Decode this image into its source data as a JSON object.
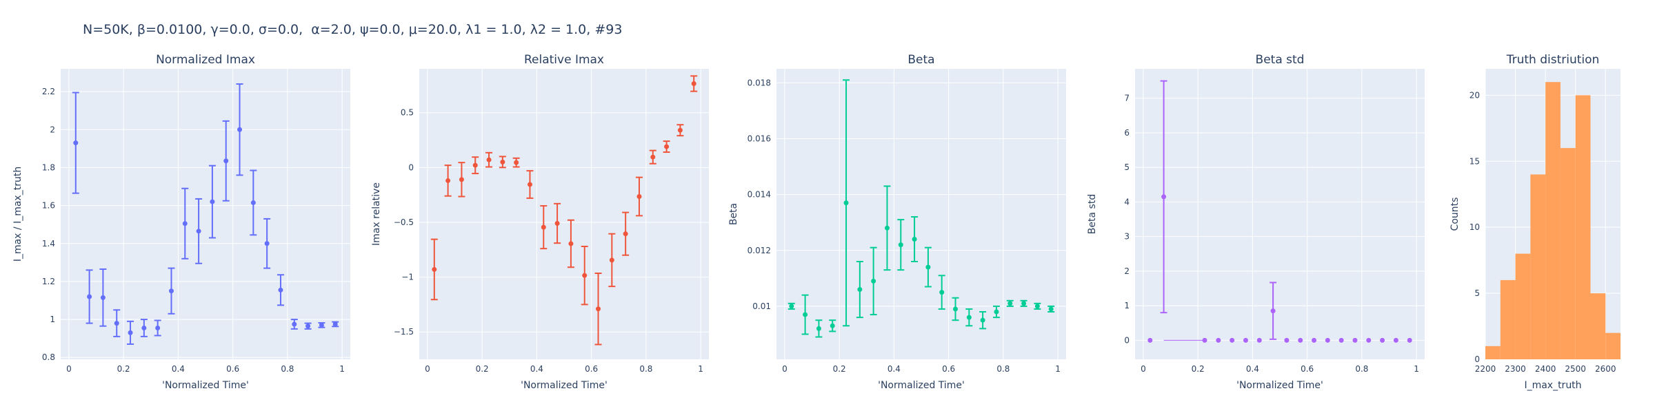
{
  "figure": {
    "title": "N=50K, β=0.0100, γ=0.0, σ=0.0,  α=2.0, ψ=0.0, μ=20.0, λ1 = 1.0, λ2 = 1.0, #93"
  },
  "colors": {
    "plot_bg": "#e5ecf6",
    "grid": "#ffffff",
    "text": "#2a3f5f",
    "blue": "#636efa",
    "red": "#ef553b",
    "green": "#00cc96",
    "purple": "#ab63fa",
    "orange": "#ffa15a"
  },
  "chart_data": [
    {
      "type": "scatter",
      "title": "Normalized Imax",
      "xlabel": "'Normalized Time'",
      "ylabel": "I_max / I_max_truth",
      "color": "blue",
      "xlim": [
        -0.03,
        1.03
      ],
      "ylim": [
        0.79,
        2.32
      ],
      "xticks": [
        0,
        0.2,
        0.4,
        0.6,
        0.8,
        1
      ],
      "xticklabels": [
        "0",
        "0.2",
        "0.4",
        "0.6",
        "0.8",
        "1"
      ],
      "yticks": [
        0.8,
        1,
        1.2,
        1.4,
        1.6,
        1.8,
        2,
        2.2
      ],
      "yticklabels": [
        "0.8",
        "1",
        "1.2",
        "1.4",
        "1.6",
        "1.8",
        "2",
        "2.2"
      ],
      "x": [
        0.025,
        0.075,
        0.125,
        0.175,
        0.225,
        0.275,
        0.325,
        0.375,
        0.425,
        0.475,
        0.525,
        0.575,
        0.625,
        0.675,
        0.725,
        0.775,
        0.825,
        0.875,
        0.925,
        0.975
      ],
      "y": [
        1.93,
        1.12,
        1.115,
        0.98,
        0.93,
        0.955,
        0.955,
        1.15,
        1.505,
        1.465,
        1.62,
        1.835,
        2.0,
        1.615,
        1.4,
        1.155,
        0.975,
        0.965,
        0.97,
        0.975
      ],
      "err": [
        0.265,
        0.14,
        0.15,
        0.07,
        0.06,
        0.045,
        0.04,
        0.12,
        0.185,
        0.17,
        0.19,
        0.21,
        0.24,
        0.17,
        0.13,
        0.08,
        0.025,
        0.015,
        0.012,
        0.012
      ]
    },
    {
      "type": "scatter",
      "title": "Relative Imax",
      "xlabel": "'Normalized Time'",
      "ylabel": "Imax relative",
      "color": "red",
      "xlim": [
        -0.03,
        1.03
      ],
      "ylim": [
        -1.75,
        0.9
      ],
      "xticks": [
        0,
        0.2,
        0.4,
        0.6,
        0.8,
        1
      ],
      "xticklabels": [
        "0",
        "0.2",
        "0.4",
        "0.6",
        "0.8",
        "1"
      ],
      "yticks": [
        -1.5,
        -1,
        -0.5,
        0,
        0.5
      ],
      "yticklabels": [
        "−1.5",
        "−1",
        "−0.5",
        "0",
        "0.5"
      ],
      "x": [
        0.025,
        0.075,
        0.125,
        0.175,
        0.225,
        0.275,
        0.325,
        0.375,
        0.425,
        0.475,
        0.525,
        0.575,
        0.625,
        0.675,
        0.725,
        0.775,
        0.825,
        0.875,
        0.925,
        0.975
      ],
      "y": [
        -0.93,
        -0.12,
        -0.11,
        0.02,
        0.07,
        0.05,
        0.045,
        -0.155,
        -0.545,
        -0.51,
        -0.695,
        -0.985,
        -1.29,
        -0.845,
        -0.605,
        -0.265,
        0.095,
        0.19,
        0.34,
        0.765
      ],
      "err": [
        0.275,
        0.14,
        0.155,
        0.075,
        0.065,
        0.05,
        0.04,
        0.125,
        0.195,
        0.18,
        0.215,
        0.265,
        0.325,
        0.24,
        0.195,
        0.175,
        0.06,
        0.05,
        0.05,
        0.07
      ]
    },
    {
      "type": "scatter",
      "title": "Beta",
      "xlabel": "'Normalized Time'",
      "ylabel": "Beta",
      "color": "green",
      "xlim": [
        -0.03,
        1.03
      ],
      "ylim": [
        0.0081,
        0.0185
      ],
      "xticks": [
        0,
        0.2,
        0.4,
        0.6,
        0.8,
        1
      ],
      "xticklabels": [
        "0",
        "0.2",
        "0.4",
        "0.6",
        "0.8",
        "1"
      ],
      "yticks": [
        0.01,
        0.012,
        0.014,
        0.016,
        0.018
      ],
      "yticklabels": [
        "0.01",
        "0.012",
        "0.014",
        "0.016",
        "0.018"
      ],
      "x": [
        0.025,
        0.075,
        0.125,
        0.175,
        0.225,
        0.275,
        0.325,
        0.375,
        0.425,
        0.475,
        0.525,
        0.575,
        0.625,
        0.675,
        0.725,
        0.775,
        0.825,
        0.875,
        0.925,
        0.975
      ],
      "y": [
        0.01,
        0.0097,
        0.0092,
        0.0093,
        0.0137,
        0.0106,
        0.0109,
        0.0128,
        0.0122,
        0.0124,
        0.0114,
        0.0105,
        0.0099,
        0.0096,
        0.0095,
        0.0098,
        0.0101,
        0.0101,
        0.01,
        0.0099
      ],
      "err": [
        0.0001,
        0.0007,
        0.0003,
        0.0002,
        0.0044,
        0.001,
        0.0012,
        0.0015,
        0.0009,
        0.0008,
        0.0007,
        0.0006,
        0.0004,
        0.0003,
        0.0003,
        0.0002,
        0.0001,
        0.0001,
        0.0001,
        0.0001
      ]
    },
    {
      "type": "scatter",
      "title": "Beta std",
      "xlabel": "'Normalized Time'",
      "ylabel": "Beta std",
      "color": "purple",
      "xlim": [
        -0.03,
        1.03
      ],
      "ylim": [
        -0.55,
        7.85
      ],
      "xticks": [
        0,
        0.2,
        0.4,
        0.6,
        0.8,
        1
      ],
      "xticklabels": [
        "0",
        "0.2",
        "0.4",
        "0.6",
        "0.8",
        "1"
      ],
      "yticks": [
        0,
        1,
        2,
        3,
        4,
        5,
        6,
        7
      ],
      "yticklabels": [
        "0",
        "1",
        "2",
        "3",
        "4",
        "5",
        "6",
        "7"
      ],
      "x": [
        0.025,
        0.075,
        0.225,
        0.275,
        0.325,
        0.375,
        0.425,
        0.475,
        0.525,
        0.575,
        0.625,
        0.675,
        0.725,
        0.775,
        0.825,
        0.875,
        0.925,
        0.975
      ],
      "y": [
        0.0,
        4.15,
        0.0,
        0.0,
        0.0,
        0.0,
        0.0,
        0.85,
        0.0,
        0.0,
        0.0,
        0.0,
        0.0,
        0.0,
        0.0,
        0.0,
        0.0,
        0.0
      ],
      "err": [
        0.0,
        3.35,
        0.0,
        0.0,
        0.0,
        0.0,
        0.0,
        0.82,
        0.0,
        0.0,
        0.0,
        0.0,
        0.0,
        0.0,
        0.0,
        0.0,
        0.0,
        0.0
      ],
      "gap_line": [
        0.075,
        0.225
      ]
    },
    {
      "type": "bar",
      "title": "Truth distriution",
      "xlabel": "I_max_truth",
      "ylabel": "Counts",
      "color": "orange",
      "xlim": [
        2200,
        2650
      ],
      "ylim": [
        0,
        22
      ],
      "xticks": [
        2200,
        2300,
        2400,
        2500,
        2600
      ],
      "xticklabels": [
        "2200",
        "2300",
        "2400",
        "2500",
        "2600"
      ],
      "yticks": [
        0,
        5,
        10,
        15,
        20
      ],
      "yticklabels": [
        "0",
        "5",
        "10",
        "15",
        "20"
      ],
      "bin_edges": [
        2200,
        2250,
        2300,
        2350,
        2400,
        2450,
        2500,
        2550,
        2600,
        2650
      ],
      "values": [
        1,
        6,
        8,
        14,
        21,
        16,
        20,
        5,
        2
      ]
    }
  ]
}
